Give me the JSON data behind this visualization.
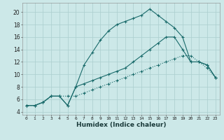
{
  "xlabel": "Humidex (Indice chaleur)",
  "bg_color": "#cce8e8",
  "grid_color": "#aacece",
  "line_color": "#1a6b6b",
  "xlim": [
    -0.5,
    23.5
  ],
  "ylim": [
    3.5,
    21.5
  ],
  "yticks": [
    4,
    6,
    8,
    10,
    12,
    14,
    16,
    18,
    20
  ],
  "xticks": [
    0,
    1,
    2,
    3,
    4,
    5,
    6,
    7,
    8,
    9,
    10,
    11,
    12,
    13,
    14,
    15,
    16,
    17,
    18,
    19,
    20,
    21,
    22,
    23
  ],
  "line_dotted_x": [
    0,
    1,
    2,
    3,
    4,
    5,
    6,
    7,
    8,
    9,
    10,
    11,
    12,
    13,
    14,
    15,
    16,
    17,
    18,
    19,
    20,
    21,
    22,
    23
  ],
  "line_dotted_y": [
    5.0,
    5.0,
    5.5,
    6.5,
    6.5,
    6.5,
    6.5,
    7.0,
    7.5,
    8.0,
    8.5,
    9.0,
    9.5,
    10.0,
    10.5,
    11.0,
    11.5,
    12.0,
    12.5,
    13.0,
    13.0,
    12.0,
    11.0,
    9.5
  ],
  "line_solid1_x": [
    0,
    1,
    2,
    3,
    4,
    5,
    6,
    7,
    8,
    9,
    10,
    11,
    12,
    13,
    14,
    15,
    16,
    17,
    18,
    19,
    20,
    21,
    22,
    23
  ],
  "line_solid1_y": [
    5.0,
    5.0,
    5.5,
    6.5,
    6.5,
    5.0,
    8.0,
    11.5,
    13.5,
    15.5,
    17.0,
    18.0,
    18.5,
    19.0,
    19.5,
    20.5,
    19.5,
    18.5,
    17.5,
    16.0,
    12.0,
    12.0,
    11.5,
    9.5
  ],
  "line_solid2_x": [
    0,
    1,
    2,
    3,
    4,
    5,
    6,
    7,
    8,
    9,
    10,
    11,
    12,
    13,
    14,
    15,
    16,
    17,
    18,
    19,
    20,
    21,
    22,
    23
  ],
  "line_solid2_y": [
    5.0,
    5.0,
    5.5,
    6.5,
    6.5,
    5.0,
    8.0,
    8.5,
    9.0,
    9.5,
    10.0,
    10.5,
    11.0,
    12.0,
    13.0,
    14.0,
    15.0,
    16.0,
    16.0,
    14.0,
    12.0,
    12.0,
    11.5,
    9.5
  ]
}
